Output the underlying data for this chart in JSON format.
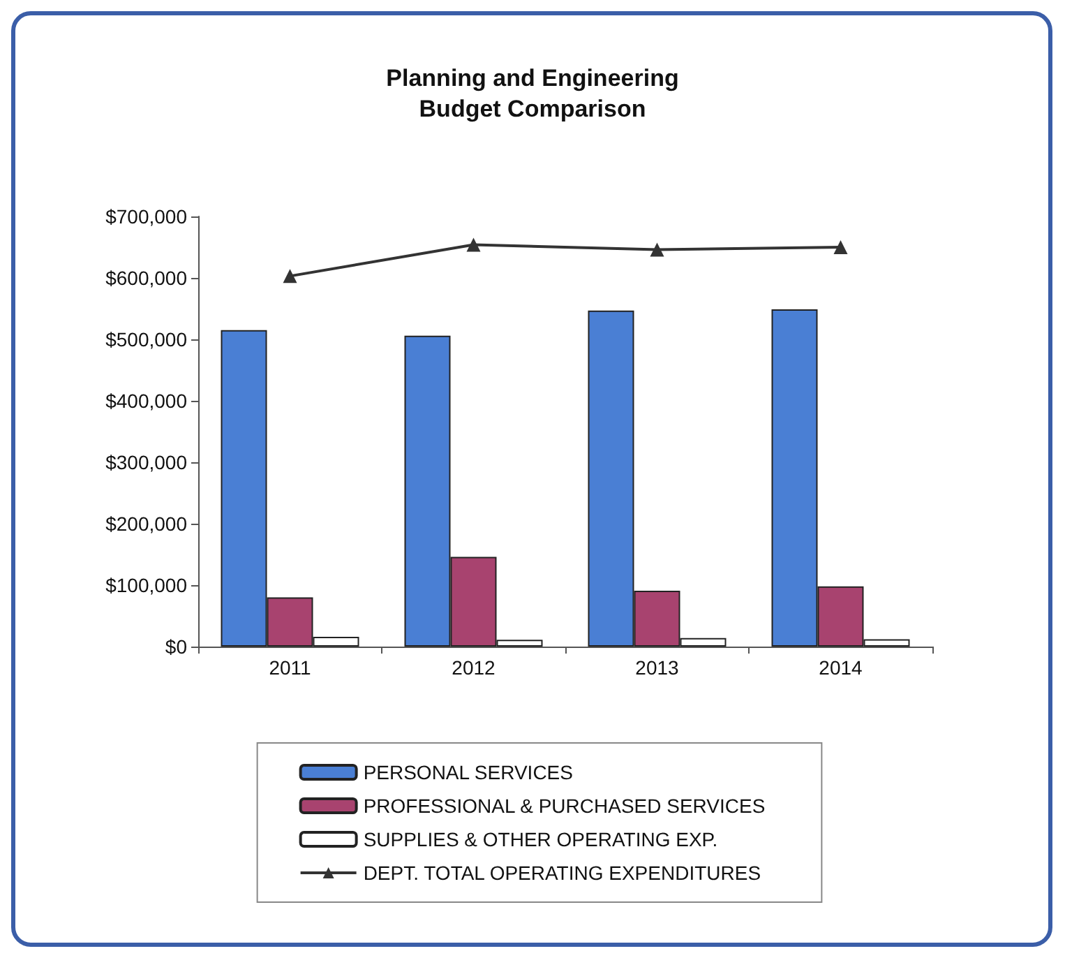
{
  "chart_data": {
    "type": "bar",
    "title": "Planning and Engineering\nBudget Comparison",
    "categories": [
      "2011",
      "2012",
      "2013",
      "2014"
    ],
    "series": [
      {
        "name": "PERSONAL SERVICES",
        "color": "#4a7fd4",
        "values": [
          515000,
          506000,
          547000,
          549000
        ]
      },
      {
        "name": "PROFESSIONAL & PURCHASED SERVICES",
        "color": "#a8436f",
        "values": [
          80000,
          146000,
          91000,
          98000
        ]
      },
      {
        "name": "SUPPLIES & OTHER OPERATING EXP.",
        "color": "#ffffff",
        "values": [
          16000,
          11000,
          14000,
          12000
        ]
      },
      {
        "name": "DEPT. TOTAL OPERATING EXPENDITURES",
        "type": "line",
        "color": "#333333",
        "marker": "triangle",
        "values": [
          603000,
          654000,
          646000,
          650000
        ]
      }
    ],
    "ylim": [
      0,
      700000
    ],
    "yticks": [
      {
        "value": 0,
        "label": "$0"
      },
      {
        "value": 100000,
        "label": "$100,000"
      },
      {
        "value": 200000,
        "label": "$200,000"
      },
      {
        "value": 300000,
        "label": "$300,000"
      },
      {
        "value": 400000,
        "label": "$400,000"
      },
      {
        "value": 500000,
        "label": "$500,000"
      },
      {
        "value": 600000,
        "label": "$600,000"
      },
      {
        "value": 700000,
        "label": "$700,000"
      }
    ],
    "grid": false,
    "legend": "bottom"
  }
}
